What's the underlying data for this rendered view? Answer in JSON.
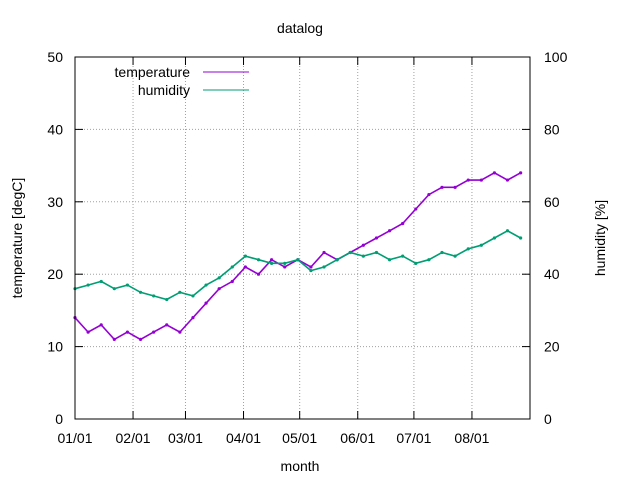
{
  "chart_data": {
    "type": "line",
    "title": "datalog",
    "xlabel": "month",
    "ylabel": "temperature [degC]",
    "y2label": "humidity [%]",
    "ylim": [
      0,
      50
    ],
    "y2lim": [
      0,
      100
    ],
    "xlim": [
      "01/01",
      "09/01"
    ],
    "x_ticks": [
      "01/01",
      "02/01",
      "03/01",
      "04/01",
      "05/01",
      "06/01",
      "07/01",
      "08/01"
    ],
    "y_ticks": [
      "0",
      "10",
      "20",
      "30",
      "40",
      "50"
    ],
    "y2_ticks": [
      "0",
      "20",
      "40",
      "60",
      "80",
      "100"
    ],
    "grid": true,
    "legend": "top-left",
    "colors": {
      "temperature": "#9400d3",
      "humidity": "#009e73"
    },
    "series": [
      {
        "name": "temperature",
        "axis": "left",
        "x": [
          "01/01",
          "01/08",
          "01/15",
          "01/22",
          "01/29",
          "02/05",
          "02/12",
          "02/19",
          "02/26",
          "03/05",
          "03/12",
          "03/19",
          "03/26",
          "04/02",
          "04/09",
          "04/16",
          "04/23",
          "04/30",
          "05/07",
          "05/14",
          "05/21",
          "05/28",
          "06/04",
          "06/11",
          "06/18",
          "06/25",
          "07/02",
          "07/09",
          "07/16",
          "07/23",
          "07/30",
          "08/06",
          "08/13",
          "08/20",
          "08/27"
        ],
        "values": [
          14,
          12,
          13,
          11,
          12,
          11,
          12,
          13,
          12,
          14,
          16,
          18,
          19,
          21,
          20,
          22,
          21,
          22,
          21,
          23,
          22,
          23,
          24,
          25,
          26,
          27,
          29,
          31,
          32,
          32,
          33,
          33,
          34,
          33,
          34
        ]
      },
      {
        "name": "humidity",
        "axis": "right",
        "x": [
          "01/01",
          "01/08",
          "01/15",
          "01/22",
          "01/29",
          "02/05",
          "02/12",
          "02/19",
          "02/26",
          "03/05",
          "03/12",
          "03/19",
          "03/26",
          "04/02",
          "04/09",
          "04/16",
          "04/23",
          "04/30",
          "05/07",
          "05/14",
          "05/21",
          "05/28",
          "06/04",
          "06/11",
          "06/18",
          "06/25",
          "07/02",
          "07/09",
          "07/16",
          "07/23",
          "07/30",
          "08/06",
          "08/13",
          "08/20",
          "08/27"
        ],
        "values": [
          36,
          37,
          38,
          36,
          37,
          35,
          34,
          33,
          35,
          34,
          37,
          39,
          42,
          45,
          44,
          43,
          43,
          44,
          41,
          42,
          44,
          46,
          45,
          46,
          44,
          45,
          43,
          44,
          46,
          45,
          47,
          48,
          50,
          52,
          50
        ]
      }
    ]
  }
}
